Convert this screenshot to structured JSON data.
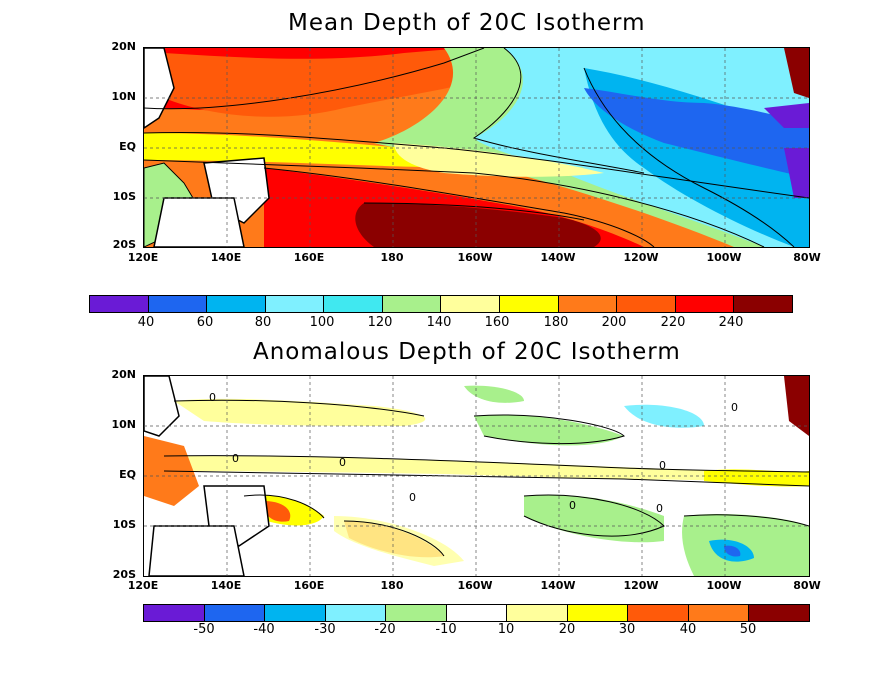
{
  "chart_data": [
    {
      "type": "heatmap",
      "title": "Mean Depth of 20C Isotherm",
      "x_ticks": [
        "120E",
        "140E",
        "160E",
        "180",
        "160W",
        "140W",
        "120W",
        "100W",
        "80W"
      ],
      "y_ticks": [
        "20N",
        "10N",
        "EQ",
        "10S",
        "20S"
      ],
      "colorbar_labels": [
        "40",
        "60",
        "80",
        "100",
        "120",
        "140",
        "160",
        "180",
        "200",
        "220",
        "240"
      ],
      "colorbar_colors": [
        "#6a1bd6",
        "#1e66f0",
        "#00b4f0",
        "#7ff0ff",
        "#40e8f0",
        "#a8f08c",
        "#ffff9c",
        "#ffff00",
        "#ff7a1a",
        "#ff5a0a",
        "#ff0000",
        "#8b0000"
      ],
      "grid": true
    },
    {
      "type": "heatmap",
      "title": "Anomalous Depth of 20C Isotherm",
      "x_ticks": [
        "120E",
        "140E",
        "160E",
        "180",
        "160W",
        "140W",
        "120W",
        "100W",
        "80W"
      ],
      "y_ticks": [
        "20N",
        "10N",
        "EQ",
        "10S",
        "20S"
      ],
      "colorbar_labels": [
        "-50",
        "-40",
        "-30",
        "-20",
        "-10",
        "10",
        "20",
        "30",
        "40",
        "50"
      ],
      "colorbar_colors": [
        "#6a1bd6",
        "#1e66f0",
        "#00b4f0",
        "#7ff0ff",
        "#a8f08c",
        "#ffffff",
        "#ffff9c",
        "#ffff00",
        "#ff5a0a",
        "#ff7a1a",
        "#8b0000"
      ],
      "contour_label": "0",
      "grid": true
    }
  ]
}
